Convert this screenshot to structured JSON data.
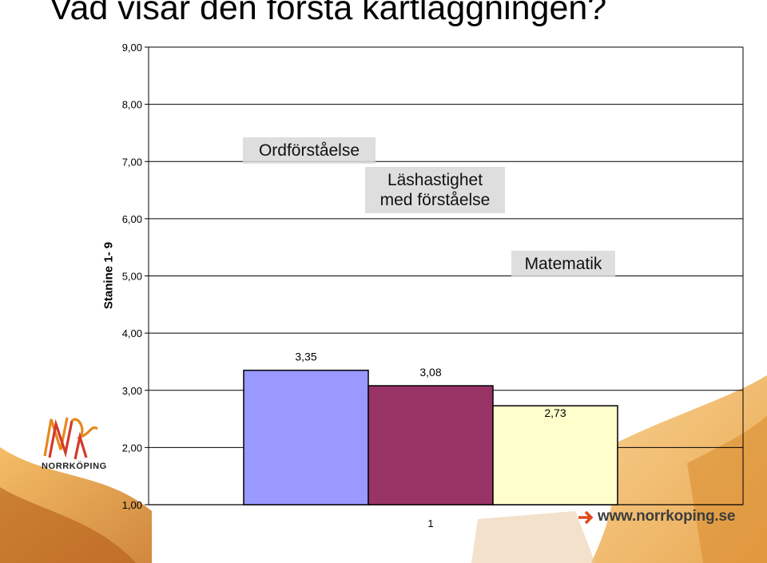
{
  "title": "Vad visar den första kartläggningen?",
  "website": "www.norrkoping.se",
  "logo_text": "NORRKÖPING",
  "chart_data": {
    "type": "bar",
    "title": "",
    "xlabel": "",
    "ylabel": "Stanine 1- 9",
    "ylim": [
      1,
      9
    ],
    "y_ticks": [
      "1,00",
      "2,00",
      "3,00",
      "4,00",
      "5,00",
      "6,00",
      "7,00",
      "8,00",
      "9,00"
    ],
    "categories": [
      "1"
    ],
    "grid": true,
    "series": [
      {
        "name": "Ordförståelse",
        "values": [
          3.35
        ],
        "label": "3,35",
        "color": "#9999ff"
      },
      {
        "name": "Läshastighet med förståelse",
        "values": [
          3.08
        ],
        "label": "3,08",
        "color": "#993366"
      },
      {
        "name": "Matematik",
        "values": [
          2.73
        ],
        "label": "2,73",
        "color": "#ffffcc"
      }
    ],
    "annotations": [
      {
        "lines": [
          "Ordförståelse"
        ]
      },
      {
        "lines": [
          "Läshastighet",
          "med förståelse"
        ]
      },
      {
        "lines": [
          "Matematik"
        ]
      }
    ]
  }
}
